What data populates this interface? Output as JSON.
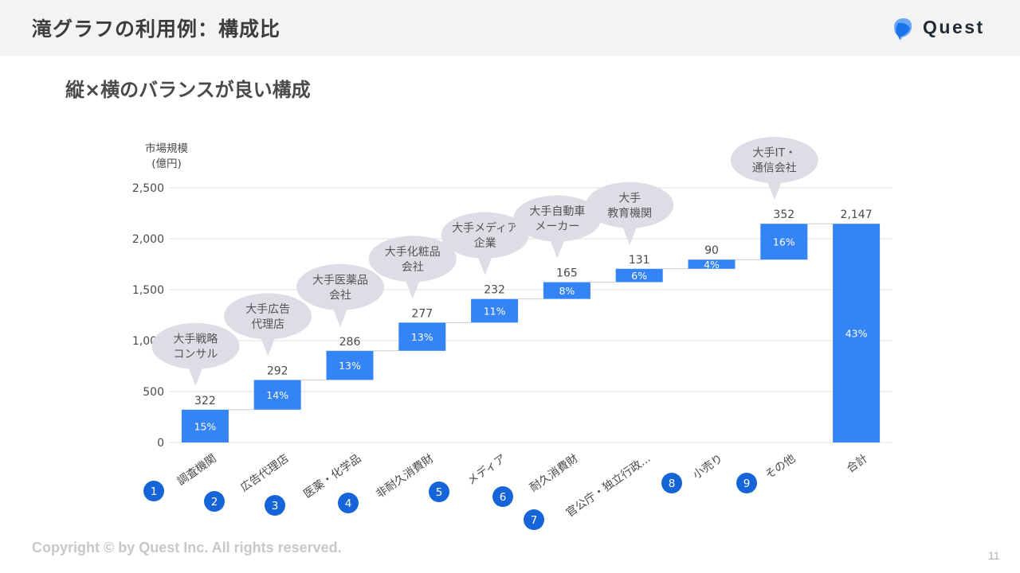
{
  "header": {
    "title": "滝グラフの利用例：構成比"
  },
  "logo": {
    "text": "Quest",
    "icon": "quest-logo-icon",
    "colors": [
      "#1a73e8",
      "#6aa9f5"
    ]
  },
  "subtitle": "縦×横のバランスが良い構成",
  "footer": {
    "copyright": "Copyright © by Quest Inc. All rights reserved.",
    "page_number": "11"
  },
  "colors": {
    "bar": "#3584f5",
    "bubble": "#dcdde5",
    "badge": "#1565d8",
    "grid": "#e2e2e2",
    "text": "#4a4a4a"
  },
  "chart_data": {
    "type": "waterfall",
    "ylabel": [
      "市場規模",
      "(億円)"
    ],
    "ylim": [
      0,
      2500
    ],
    "yticks": [
      "0",
      "500",
      "1,000",
      "1,500",
      "2,000",
      "2,500"
    ],
    "grid": true,
    "categories": [
      "調査機関",
      "広告代理店",
      "医薬・化学品",
      "非耐久消費財",
      "メディア",
      "耐久消費財",
      "官公庁・独立行政...",
      "小売り",
      "その他",
      "合計"
    ],
    "badges": [
      "1",
      "2",
      "3",
      "4",
      "5",
      "6",
      "7",
      "8",
      "9",
      ""
    ],
    "values": [
      322,
      292,
      286,
      277,
      232,
      165,
      131,
      90,
      352,
      2147
    ],
    "value_labels": [
      "322",
      "292",
      "286",
      "277",
      "232",
      "165",
      "131",
      "90",
      "352",
      "2,147"
    ],
    "percent_labels": [
      "15%",
      "14%",
      "13%",
      "13%",
      "11%",
      "8%",
      "6%",
      "4%",
      "16%",
      "43%"
    ],
    "is_total": [
      false,
      false,
      false,
      false,
      false,
      false,
      false,
      false,
      false,
      true
    ],
    "annotations": [
      {
        "index": 0,
        "lines": [
          "大手戦略",
          "コンサル"
        ]
      },
      {
        "index": 1,
        "lines": [
          "大手広告",
          "代理店"
        ]
      },
      {
        "index": 2,
        "lines": [
          "大手医薬品",
          "会社"
        ]
      },
      {
        "index": 3,
        "lines": [
          "大手化粧品",
          "会社"
        ]
      },
      {
        "index": 4,
        "lines": [
          "大手メディア",
          "企業"
        ]
      },
      {
        "index": 5,
        "lines": [
          "大手自動車",
          "メーカー"
        ]
      },
      {
        "index": 6,
        "lines": [
          "大手",
          "教育機関"
        ]
      },
      {
        "index": 8,
        "lines": [
          "大手IT・",
          "通信会社"
        ]
      }
    ]
  }
}
